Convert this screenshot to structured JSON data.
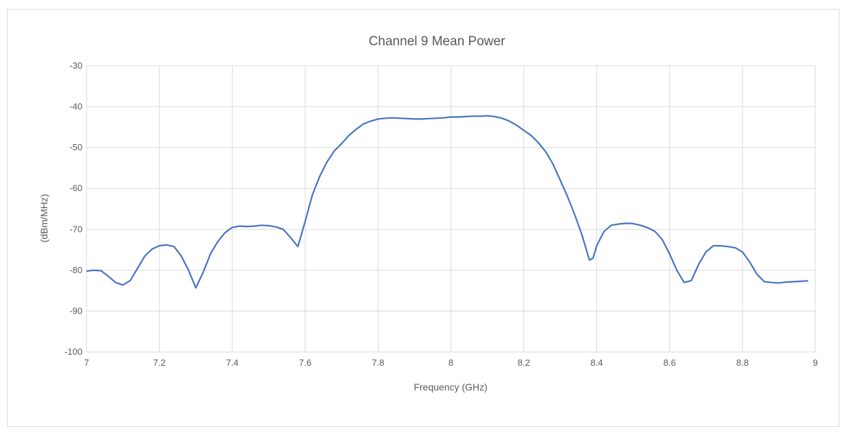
{
  "chart_data": {
    "type": "line",
    "title": "Channel 9 Mean Power",
    "xlabel": "Frequency (GHz)",
    "ylabel": "(dBm/MHz)",
    "xlim": [
      7,
      9
    ],
    "ylim": [
      -100,
      -30
    ],
    "x_ticks": [
      7,
      7.2,
      7.4,
      7.6,
      7.8,
      8,
      8.2,
      8.4,
      8.6,
      8.8,
      9
    ],
    "x_tick_labels": [
      "7",
      "7.2",
      "7.4",
      "7.6",
      "7.8",
      "8",
      "8.2",
      "8.4",
      "8.6",
      "8.8",
      "9"
    ],
    "y_ticks": [
      -100,
      -90,
      -80,
      -70,
      -60,
      -50,
      -40,
      -30
    ],
    "y_tick_labels": [
      "-100",
      "-90",
      "-80",
      "-70",
      "-60",
      "-50",
      "-40",
      "-30"
    ],
    "grid": true,
    "legend": "none",
    "line_color": "#4472c4",
    "series": [
      {
        "x": [
          7.0,
          7.02,
          7.04,
          7.06,
          7.08,
          7.1,
          7.12,
          7.14,
          7.16,
          7.18,
          7.2,
          7.22,
          7.24,
          7.26,
          7.28,
          7.3,
          7.32,
          7.34,
          7.36,
          7.38,
          7.4,
          7.42,
          7.44,
          7.46,
          7.48,
          7.5,
          7.52,
          7.54,
          7.56,
          7.58,
          7.6,
          7.62,
          7.64,
          7.66,
          7.68,
          7.7,
          7.72,
          7.74,
          7.76,
          7.78,
          7.8,
          7.82,
          7.84,
          7.86,
          7.88,
          7.9,
          7.92,
          7.94,
          7.96,
          7.98,
          8.0,
          8.02,
          8.04,
          8.06,
          8.08,
          8.1,
          8.12,
          8.14,
          8.16,
          8.18,
          8.2,
          8.22,
          8.24,
          8.26,
          8.28,
          8.3,
          8.32,
          8.34,
          8.36,
          8.38,
          8.39,
          8.4,
          8.42,
          8.44,
          8.46,
          8.48,
          8.5,
          8.52,
          8.54,
          8.56,
          8.58,
          8.6,
          8.62,
          8.64,
          8.66,
          8.68,
          8.7,
          8.72,
          8.74,
          8.76,
          8.78,
          8.8,
          8.82,
          8.84,
          8.86,
          8.88,
          8.9,
          8.92,
          8.94,
          8.96,
          8.98
        ],
        "y": [
          -80.2,
          -80.0,
          -80.1,
          -81.5,
          -83.0,
          -83.6,
          -82.5,
          -79.5,
          -76.5,
          -74.8,
          -74.0,
          -73.8,
          -74.2,
          -76.5,
          -80.0,
          -84.3,
          -80.5,
          -76.0,
          -73.0,
          -70.8,
          -69.5,
          -69.2,
          -69.3,
          -69.2,
          -69.0,
          -69.1,
          -69.4,
          -70.0,
          -72.0,
          -74.2,
          -68.0,
          -61.5,
          -57.0,
          -53.5,
          -50.8,
          -49.0,
          -47.0,
          -45.5,
          -44.2,
          -43.5,
          -43.0,
          -42.8,
          -42.7,
          -42.8,
          -42.9,
          -43.0,
          -43.0,
          -42.9,
          -42.8,
          -42.7,
          -42.5,
          -42.5,
          -42.4,
          -42.3,
          -42.3,
          -42.2,
          -42.4,
          -42.8,
          -43.5,
          -44.5,
          -45.8,
          -47.0,
          -48.8,
          -51.0,
          -54.0,
          -58.0,
          -62.0,
          -66.5,
          -71.5,
          -77.5,
          -77.0,
          -74.0,
          -70.5,
          -69.0,
          -68.7,
          -68.5,
          -68.6,
          -69.0,
          -69.6,
          -70.5,
          -72.5,
          -76.0,
          -80.0,
          -83.0,
          -82.5,
          -78.5,
          -75.5,
          -74.0,
          -74.0,
          -74.2,
          -74.5,
          -75.5,
          -78.0,
          -81.0,
          -82.8,
          -83.0,
          -83.1,
          -82.9,
          -82.8,
          -82.7,
          -82.6
        ]
      }
    ]
  }
}
